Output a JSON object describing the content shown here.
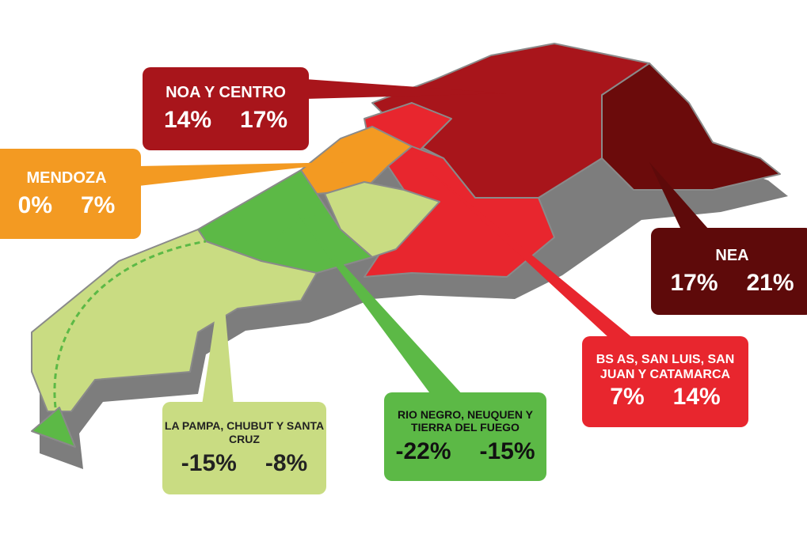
{
  "regions": [
    {
      "name": "NOA Y CENTRO",
      "values": [
        "14%",
        "17%"
      ]
    },
    {
      "name": "MENDOZA",
      "values": [
        "0%",
        "7%"
      ]
    },
    {
      "name": "NEA",
      "values": [
        "17%",
        "21%"
      ]
    },
    {
      "name": "BS AS, SAN LUIS, SAN JUAN Y CATAMARCA",
      "values": [
        "7%",
        "14%"
      ]
    },
    {
      "name": "LA PAMPA, CHUBUT Y SANTA CRUZ",
      "values": [
        "-15%",
        "-8%"
      ]
    },
    {
      "name": "RIO NEGRO, NEUQUEN Y TIERRA DEL FUEGO",
      "values": [
        "-22%",
        "-15%"
      ]
    }
  ]
}
